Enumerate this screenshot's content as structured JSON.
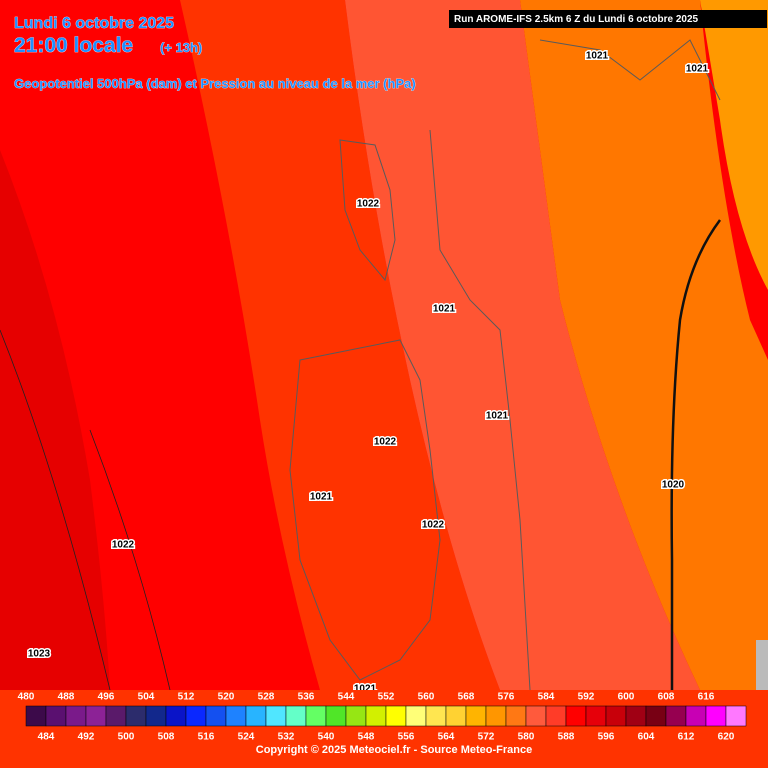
{
  "header": {
    "date": "Lundi 6 octobre 2025",
    "time": "21:00 locale",
    "lead": "(+ 13h)",
    "subtitle": "Geopotentiel 500hPa (dam) et Pression au niveau de la mer (hPa)",
    "run": "Run AROME-IFS 2.5km 6 Z du Lundi 6 octobre 2025"
  },
  "isobar_labels": [
    "1021",
    "1021",
    "1022",
    "1021",
    "1021",
    "1022",
    "1021",
    "1020",
    "1022",
    "1022",
    "1023",
    "1021"
  ],
  "scale": {
    "labels_top": [
      480,
      488,
      496,
      504,
      512,
      520,
      528,
      536,
      544,
      552,
      560,
      568,
      576,
      584,
      592,
      600,
      608,
      616
    ],
    "labels_bottom": [
      484,
      492,
      500,
      508,
      516,
      524,
      532,
      540,
      548,
      556,
      564,
      572,
      580,
      588,
      596,
      604,
      612,
      620
    ],
    "colors": [
      "#3c0a4a",
      "#5a1070",
      "#7a1a8a",
      "#8c2296",
      "#5a1a6a",
      "#2c2c6c",
      "#12288c",
      "#0a14c8",
      "#0a28ff",
      "#1450f0",
      "#1e82ff",
      "#28b4ff",
      "#50e6ff",
      "#64ffc8",
      "#64ff64",
      "#50e628",
      "#96e614",
      "#d2f000",
      "#ffff00",
      "#ffff78",
      "#ffe650",
      "#ffd232",
      "#ffb400",
      "#ff9600",
      "#ff7814",
      "#ff5a3c",
      "#ff3c28",
      "#ff0000",
      "#e6000a",
      "#c8000a",
      "#a00014",
      "#780014",
      "#960050",
      "#c800b4",
      "#ff00ff",
      "#ff78ff"
    ]
  },
  "copyright": "Copyright © 2025 Meteociel.fr - Source Meteo-France"
}
